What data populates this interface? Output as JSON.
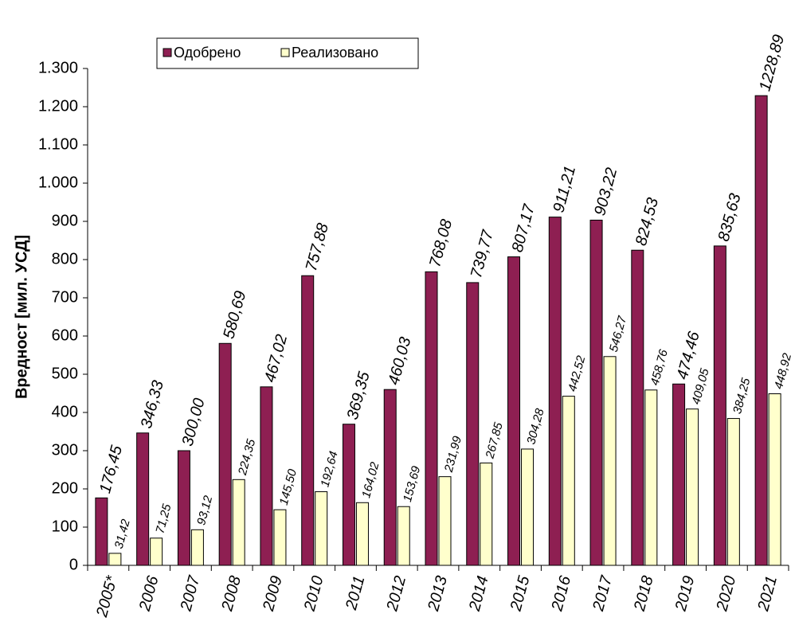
{
  "chart_data": {
    "type": "bar",
    "y_label": "Вредност [мил. УСД]",
    "categories": [
      "2005*",
      "2006",
      "2007",
      "2008",
      "2009",
      "2010",
      "2011",
      "2012",
      "2013",
      "2014",
      "2015",
      "2016",
      "2017",
      "2018",
      "2019",
      "2020",
      "2021"
    ],
    "series": [
      {
        "name": "Одобрено",
        "color": "#8e1f52",
        "values": [
          176.45,
          346.33,
          300.0,
          580.69,
          467.02,
          757.88,
          369.35,
          460.03,
          768.08,
          739.77,
          807.17,
          911.21,
          903.22,
          824.53,
          474.46,
          835.63,
          1228.89
        ],
        "value_labels": [
          "176,45",
          "346,33",
          "300,00",
          "580,69",
          "467,02",
          "757,88",
          "369,35",
          "460,03",
          "768,08",
          "739,77",
          "807,17",
          "911,21",
          "903,22",
          "824,53",
          "474,46",
          "835,63",
          "1228,89"
        ]
      },
      {
        "name": "Реализовано",
        "color": "#ffffcc",
        "values": [
          31.42,
          71.25,
          93.12,
          224.35,
          145.5,
          192.64,
          164.02,
          153.69,
          231.99,
          267.85,
          304.28,
          442.52,
          546.27,
          458.76,
          409.05,
          384.25,
          448.92
        ],
        "value_labels": [
          "31,42",
          "71,25",
          "93,12",
          "224,35",
          "145,50",
          "192,64",
          "164,02",
          "153,69",
          "231,99",
          "267,85",
          "304,28",
          "442,52",
          "546,27",
          "458,76",
          "409,05",
          "384,25",
          "448,92"
        ]
      }
    ],
    "ylim": [
      0,
      1300
    ],
    "yticks": [
      0,
      100,
      200,
      300,
      400,
      500,
      600,
      700,
      800,
      900,
      {
        "value": 1000,
        "label": "1.000"
      },
      {
        "value": 1100,
        "label": "1.100"
      },
      {
        "value": 1200,
        "label": "1.200"
      },
      {
        "value": 1300,
        "label": "1.300"
      }
    ],
    "legend": "top"
  }
}
